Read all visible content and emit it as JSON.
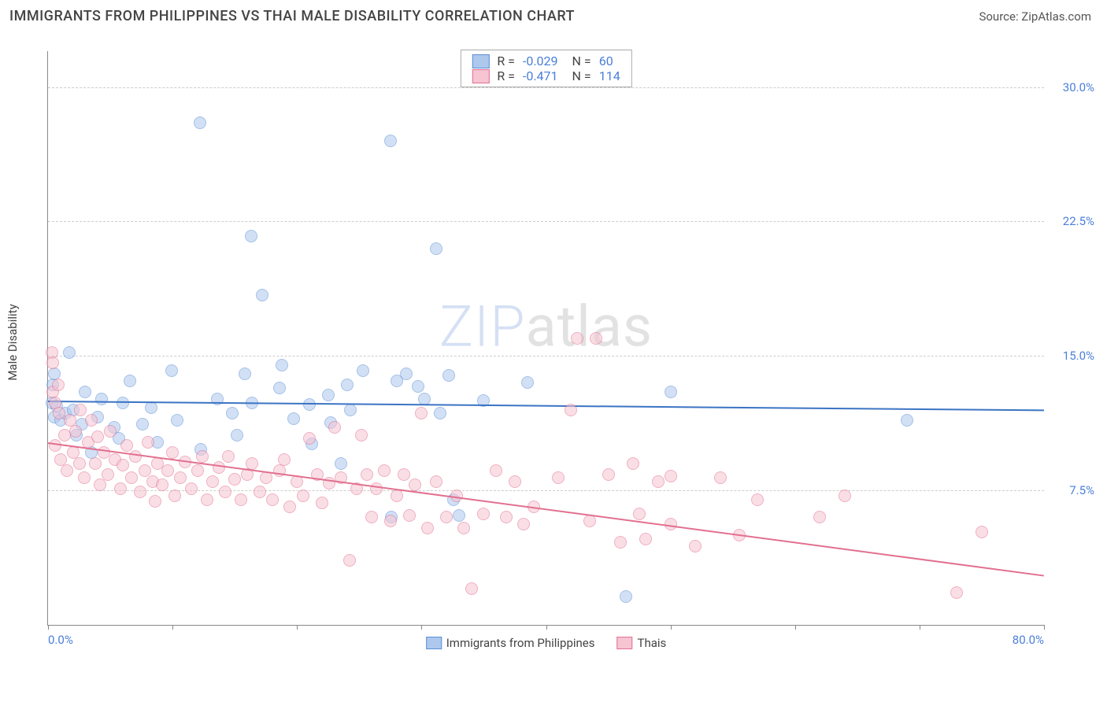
{
  "header": {
    "title": "IMMIGRANTS FROM PHILIPPINES VS THAI MALE DISABILITY CORRELATION CHART",
    "source_label": "Source: ZipAtlas.com"
  },
  "chart": {
    "type": "scatter",
    "ylabel": "Male Disability",
    "xlim": [
      0,
      80
    ],
    "ylim": [
      0,
      32
    ],
    "xtick_positions": [
      0,
      10,
      20,
      30,
      40,
      50,
      60,
      70,
      80
    ],
    "xtick_labels": {
      "0": "0.0%",
      "80": "80.0%"
    },
    "ytick_positions": [
      7.5,
      15.0,
      22.5,
      30.0
    ],
    "ytick_labels": [
      "7.5%",
      "15.0%",
      "22.5%",
      "30.0%"
    ],
    "background_color": "#ffffff",
    "grid_color": "#cccccc",
    "axis_color": "#888888",
    "tick_label_color": "#4a7fd8",
    "marker_radius": 8,
    "marker_opacity": 0.55,
    "watermark": {
      "zip": "ZIP",
      "atlas": "atlas"
    },
    "series": [
      {
        "name": "Immigrants from Philippines",
        "legend_label": "Immigrants from Philippines",
        "fill_color": "#aec8ed",
        "stroke_color": "#5b8fd6",
        "trend_color": "#3b74c4",
        "R_label": "R =",
        "R_value": "-0.029",
        "N_label": "N =",
        "N_value": "60",
        "trend": {
          "x1": 0,
          "y1": 12.5,
          "x2": 80,
          "y2": 12.0
        },
        "points": [
          [
            0.3,
            12.4
          ],
          [
            0.4,
            13.4
          ],
          [
            0.5,
            11.6
          ],
          [
            0.5,
            14.0
          ],
          [
            0.7,
            12.2
          ],
          [
            1.0,
            11.4
          ],
          [
            1.4,
            11.8
          ],
          [
            1.7,
            15.2
          ],
          [
            2.0,
            12.0
          ],
          [
            2.3,
            10.6
          ],
          [
            2.7,
            11.2
          ],
          [
            3.0,
            13.0
          ],
          [
            3.5,
            9.6
          ],
          [
            4.0,
            11.6
          ],
          [
            4.3,
            12.6
          ],
          [
            5.3,
            11.0
          ],
          [
            5.7,
            10.4
          ],
          [
            6.0,
            12.4
          ],
          [
            6.6,
            13.6
          ],
          [
            7.6,
            11.2
          ],
          [
            8.3,
            12.1
          ],
          [
            8.8,
            10.2
          ],
          [
            9.9,
            14.2
          ],
          [
            10.4,
            11.4
          ],
          [
            12.2,
            28.0
          ],
          [
            12.3,
            9.8
          ],
          [
            13.6,
            12.6
          ],
          [
            14.8,
            11.8
          ],
          [
            15.2,
            10.6
          ],
          [
            15.8,
            14.0
          ],
          [
            16.3,
            21.7
          ],
          [
            16.4,
            12.4
          ],
          [
            17.2,
            18.4
          ],
          [
            18.6,
            13.2
          ],
          [
            18.8,
            14.5
          ],
          [
            19.7,
            11.5
          ],
          [
            21.0,
            12.3
          ],
          [
            21.2,
            10.1
          ],
          [
            22.5,
            12.8
          ],
          [
            22.7,
            11.3
          ],
          [
            23.5,
            9.0
          ],
          [
            24.0,
            13.4
          ],
          [
            24.3,
            12.0
          ],
          [
            25.3,
            14.2
          ],
          [
            27.5,
            27.0
          ],
          [
            27.6,
            6.0
          ],
          [
            28.0,
            13.6
          ],
          [
            28.8,
            14.0
          ],
          [
            29.7,
            13.3
          ],
          [
            30.2,
            12.6
          ],
          [
            31.2,
            21.0
          ],
          [
            31.5,
            11.8
          ],
          [
            32.2,
            13.9
          ],
          [
            32.6,
            7.0
          ],
          [
            33.0,
            6.1
          ],
          [
            35.0,
            12.5
          ],
          [
            38.5,
            13.5
          ],
          [
            46.4,
            1.6
          ],
          [
            50.0,
            13.0
          ],
          [
            69.0,
            11.4
          ]
        ]
      },
      {
        "name": "Thais",
        "legend_label": "Thais",
        "fill_color": "#f6c4d3",
        "stroke_color": "#e2708f",
        "trend_color": "#e2708f",
        "R_label": "R =",
        "R_value": "-0.471",
        "N_label": "N =",
        "N_value": "114",
        "trend": {
          "x1": 0,
          "y1": 10.2,
          "x2": 80,
          "y2": 2.8
        },
        "points": [
          [
            0.3,
            15.2
          ],
          [
            0.4,
            13.0
          ],
          [
            0.4,
            14.6
          ],
          [
            0.6,
            12.4
          ],
          [
            0.6,
            10.0
          ],
          [
            0.8,
            13.4
          ],
          [
            0.9,
            11.8
          ],
          [
            1.0,
            9.2
          ],
          [
            1.3,
            10.6
          ],
          [
            1.5,
            8.6
          ],
          [
            1.8,
            11.4
          ],
          [
            2.0,
            9.6
          ],
          [
            2.2,
            10.8
          ],
          [
            2.5,
            9.0
          ],
          [
            2.6,
            12.0
          ],
          [
            2.9,
            8.2
          ],
          [
            3.2,
            10.2
          ],
          [
            3.5,
            11.4
          ],
          [
            3.8,
            9.0
          ],
          [
            4.0,
            10.5
          ],
          [
            4.2,
            7.8
          ],
          [
            4.5,
            9.6
          ],
          [
            4.8,
            8.4
          ],
          [
            5.0,
            10.8
          ],
          [
            5.4,
            9.2
          ],
          [
            5.8,
            7.6
          ],
          [
            6.0,
            8.9
          ],
          [
            6.3,
            10.0
          ],
          [
            6.7,
            8.2
          ],
          [
            7.0,
            9.4
          ],
          [
            7.4,
            7.4
          ],
          [
            7.8,
            8.6
          ],
          [
            8.0,
            10.2
          ],
          [
            8.4,
            8.0
          ],
          [
            8.6,
            6.9
          ],
          [
            8.8,
            9.0
          ],
          [
            9.2,
            7.8
          ],
          [
            9.6,
            8.6
          ],
          [
            10.0,
            9.6
          ],
          [
            10.2,
            7.2
          ],
          [
            10.6,
            8.2
          ],
          [
            11.0,
            9.1
          ],
          [
            11.5,
            7.6
          ],
          [
            12.0,
            8.6
          ],
          [
            12.4,
            9.4
          ],
          [
            12.8,
            7.0
          ],
          [
            13.2,
            8.0
          ],
          [
            13.7,
            8.8
          ],
          [
            14.2,
            7.4
          ],
          [
            14.5,
            9.4
          ],
          [
            15.0,
            8.1
          ],
          [
            15.5,
            7.0
          ],
          [
            16.0,
            8.4
          ],
          [
            16.4,
            9.0
          ],
          [
            17.0,
            7.4
          ],
          [
            17.5,
            8.2
          ],
          [
            18.0,
            7.0
          ],
          [
            18.6,
            8.6
          ],
          [
            19.0,
            9.2
          ],
          [
            19.4,
            6.6
          ],
          [
            20.0,
            8.0
          ],
          [
            20.5,
            7.2
          ],
          [
            21.0,
            10.4
          ],
          [
            21.6,
            8.4
          ],
          [
            22.0,
            6.8
          ],
          [
            22.6,
            7.9
          ],
          [
            23.0,
            11.0
          ],
          [
            23.5,
            8.2
          ],
          [
            24.2,
            3.6
          ],
          [
            24.8,
            7.6
          ],
          [
            25.2,
            10.6
          ],
          [
            25.6,
            8.4
          ],
          [
            26.0,
            6.0
          ],
          [
            26.4,
            7.6
          ],
          [
            27.0,
            8.6
          ],
          [
            27.5,
            5.8
          ],
          [
            28.0,
            7.2
          ],
          [
            28.6,
            8.4
          ],
          [
            29.0,
            6.1
          ],
          [
            29.5,
            7.8
          ],
          [
            30.0,
            11.8
          ],
          [
            30.5,
            5.4
          ],
          [
            31.2,
            8.0
          ],
          [
            32.0,
            6.0
          ],
          [
            32.8,
            7.2
          ],
          [
            33.4,
            5.4
          ],
          [
            34.0,
            2.0
          ],
          [
            35.0,
            6.2
          ],
          [
            36.0,
            8.6
          ],
          [
            36.8,
            6.0
          ],
          [
            37.5,
            8.0
          ],
          [
            38.2,
            5.6
          ],
          [
            39.0,
            6.6
          ],
          [
            41.0,
            8.2
          ],
          [
            42.0,
            12.0
          ],
          [
            42.5,
            16.0
          ],
          [
            43.5,
            5.8
          ],
          [
            44.0,
            16.0
          ],
          [
            45.0,
            8.4
          ],
          [
            46.0,
            4.6
          ],
          [
            47.0,
            9.0
          ],
          [
            47.5,
            6.2
          ],
          [
            48.0,
            4.8
          ],
          [
            49.0,
            8.0
          ],
          [
            50.0,
            5.6
          ],
          [
            50.0,
            8.3
          ],
          [
            52.0,
            4.4
          ],
          [
            54.0,
            8.2
          ],
          [
            55.5,
            5.0
          ],
          [
            57.0,
            7.0
          ],
          [
            62.0,
            6.0
          ],
          [
            64.0,
            7.2
          ],
          [
            73.0,
            1.8
          ],
          [
            75.0,
            5.2
          ]
        ]
      }
    ]
  }
}
